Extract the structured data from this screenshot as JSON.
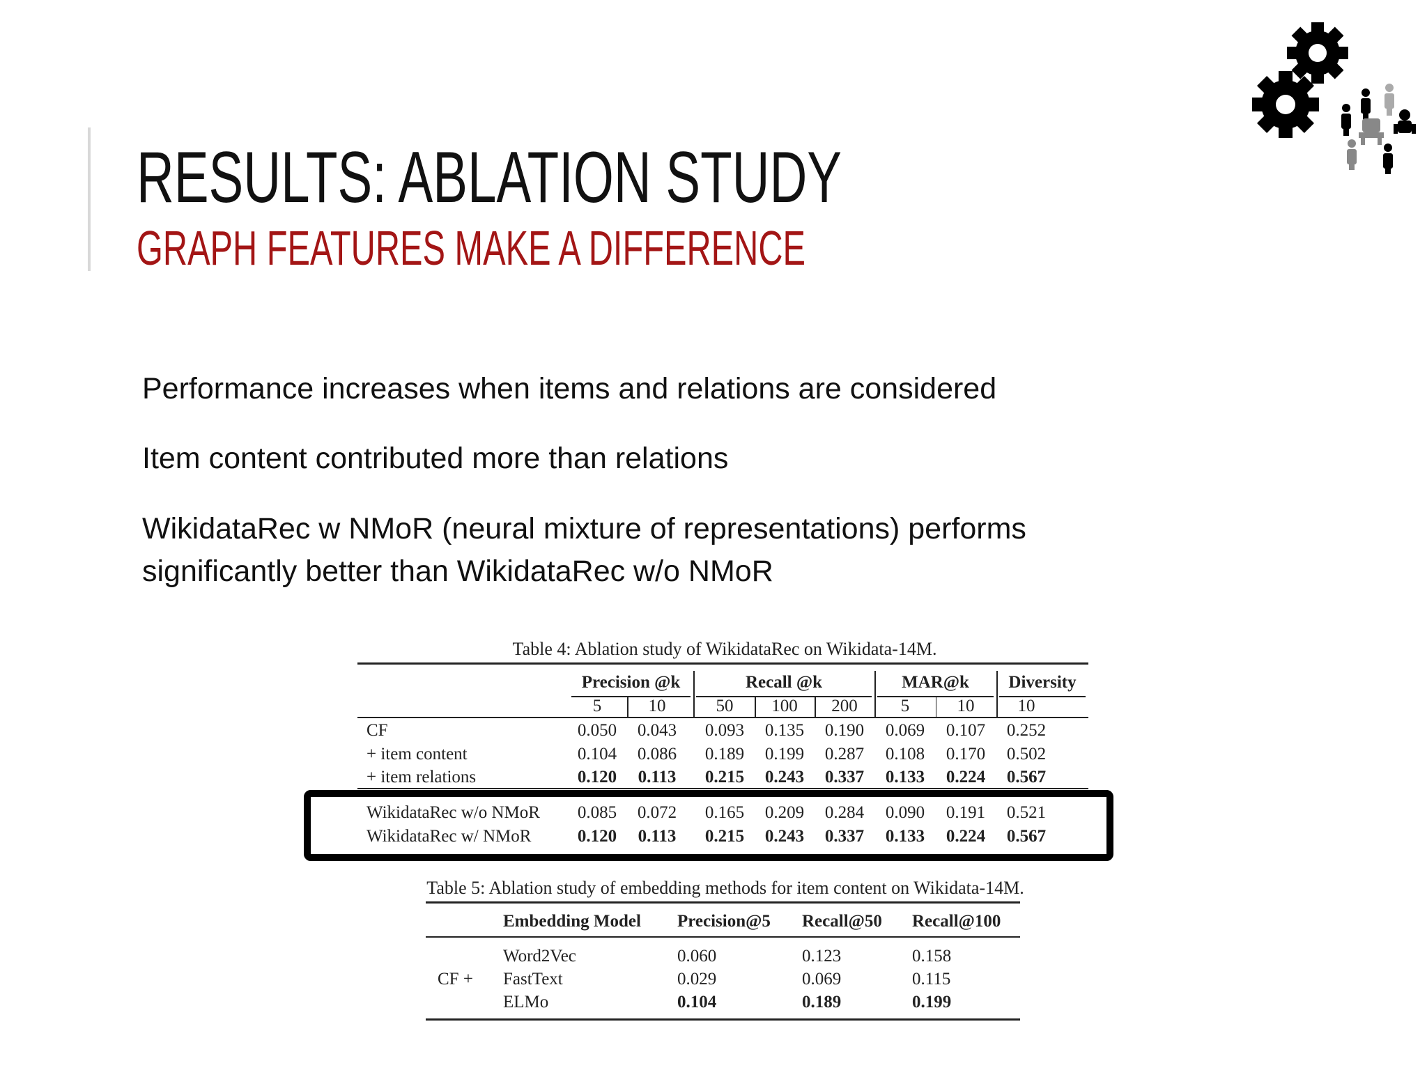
{
  "header": {
    "title": "RESULTS: ABLATION STUDY",
    "subtitle": "GRAPH FEATURES MAKE A DIFFERENCE"
  },
  "bullets": [
    "Performance increases when items and relations are considered",
    "Item content contributed more than relations",
    "WikidataRec w NMoR (neural mixture of representations) performs",
    "significantly better than WikidataRec w/o NMoR"
  ],
  "table4": {
    "caption": "Table 4: Ablation study of WikidataRec on Wikidata-14M.",
    "groups": [
      {
        "name": "Precision @k",
        "ks": [
          "5",
          "10"
        ]
      },
      {
        "name": "Recall @k",
        "ks": [
          "50",
          "100",
          "200"
        ]
      },
      {
        "name": "MAR@k",
        "ks": [
          "5",
          "10"
        ]
      },
      {
        "name": "Diversity",
        "ks": [
          "10"
        ]
      }
    ],
    "rows": [
      {
        "label": "CF",
        "values": [
          "0.050",
          "0.043",
          "0.093",
          "0.135",
          "0.190",
          "0.069",
          "0.107",
          "0.252"
        ],
        "bold": false
      },
      {
        "label": "+ item content",
        "values": [
          "0.104",
          "0.086",
          "0.189",
          "0.199",
          "0.287",
          "0.108",
          "0.170",
          "0.502"
        ],
        "bold": false
      },
      {
        "label": "+ item relations",
        "values": [
          "0.120",
          "0.113",
          "0.215",
          "0.243",
          "0.337",
          "0.133",
          "0.224",
          "0.567"
        ],
        "bold": true
      },
      {
        "label": "WikidataRec w/o NMoR",
        "values": [
          "0.085",
          "0.072",
          "0.165",
          "0.209",
          "0.284",
          "0.090",
          "0.191",
          "0.521"
        ],
        "bold": false
      },
      {
        "label": "WikidataRec w/ NMoR",
        "values": [
          "0.120",
          "0.113",
          "0.215",
          "0.243",
          "0.337",
          "0.133",
          "0.224",
          "0.567"
        ],
        "bold": true
      }
    ]
  },
  "table5": {
    "caption": "Table 5: Ablation study of embedding methods for item content on Wikidata-14M.",
    "header": [
      "Embedding Model",
      "Precision@5",
      "Recall@50",
      "Recall@100"
    ],
    "group_label": "CF +",
    "rows": [
      {
        "label": "Word2Vec",
        "values": [
          "0.060",
          "0.123",
          "0.158"
        ],
        "bold": false
      },
      {
        "label": "FastText",
        "values": [
          "0.029",
          "0.069",
          "0.115"
        ],
        "bold": false
      },
      {
        "label": "ELMo",
        "values": [
          "0.104",
          "0.189",
          "0.199"
        ],
        "bold": true
      }
    ]
  }
}
